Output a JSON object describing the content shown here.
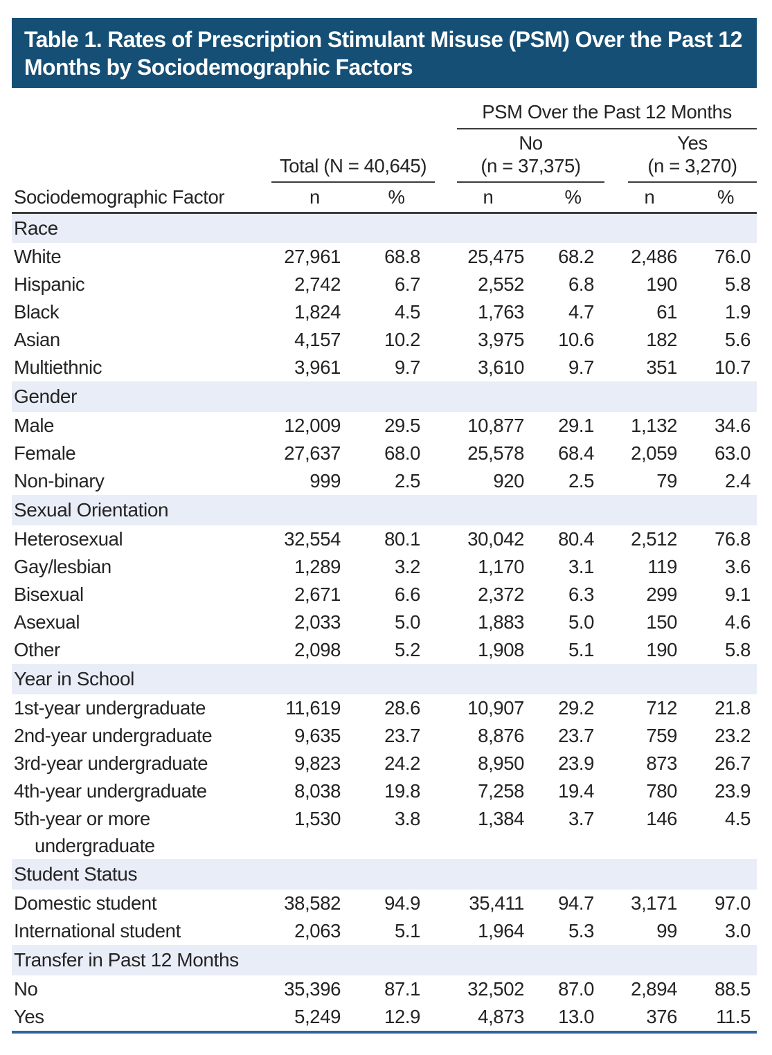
{
  "title": "Table 1. Rates of Prescription Stimulant Misuse (PSM) Over the Past 12 Months by Sociodemographic Factors",
  "colors": {
    "title_bg": "#164F75",
    "band_bg": "#E9EDF8",
    "rule": "#3B3B3B",
    "bottom_line": "#2A66A4",
    "text": "#242424"
  },
  "header": {
    "spanner_label": "PSM Over the Past 12 Months",
    "factor_label": "Sociodemographic Factor",
    "groups": [
      {
        "line1": "Total (N = 40,645)",
        "line2": ""
      },
      {
        "line1": "No",
        "line2": "(n = 37,375)"
      },
      {
        "line1": "Yes",
        "line2": "(n = 3,270)"
      }
    ],
    "stat_labels": [
      "n",
      "%",
      "n",
      "%",
      "n",
      "%"
    ]
  },
  "sections": [
    {
      "label": "Race",
      "rows": [
        {
          "label": "White",
          "values": [
            "27,961",
            "68.8",
            "25,475",
            "68.2",
            "2,486",
            "76.0"
          ]
        },
        {
          "label": "Hispanic",
          "values": [
            "2,742",
            "6.7",
            "2,552",
            "6.8",
            "190",
            "5.8"
          ]
        },
        {
          "label": "Black",
          "values": [
            "1,824",
            "4.5",
            "1,763",
            "4.7",
            "61",
            "1.9"
          ]
        },
        {
          "label": "Asian",
          "values": [
            "4,157",
            "10.2",
            "3,975",
            "10.6",
            "182",
            "5.6"
          ]
        },
        {
          "label": "Multiethnic",
          "values": [
            "3,961",
            "9.7",
            "3,610",
            "9.7",
            "351",
            "10.7"
          ]
        }
      ]
    },
    {
      "label": "Gender",
      "rows": [
        {
          "label": "Male",
          "values": [
            "12,009",
            "29.5",
            "10,877",
            "29.1",
            "1,132",
            "34.6"
          ]
        },
        {
          "label": "Female",
          "values": [
            "27,637",
            "68.0",
            "25,578",
            "68.4",
            "2,059",
            "63.0"
          ]
        },
        {
          "label": "Non-binary",
          "values": [
            "999",
            "2.5",
            "920",
            "2.5",
            "79",
            "2.4"
          ]
        }
      ]
    },
    {
      "label": "Sexual Orientation",
      "rows": [
        {
          "label": "Heterosexual",
          "values": [
            "32,554",
            "80.1",
            "30,042",
            "80.4",
            "2,512",
            "76.8"
          ]
        },
        {
          "label": "Gay/lesbian",
          "values": [
            "1,289",
            "3.2",
            "1,170",
            "3.1",
            "119",
            "3.6"
          ]
        },
        {
          "label": "Bisexual",
          "values": [
            "2,671",
            "6.6",
            "2,372",
            "6.3",
            "299",
            "9.1"
          ]
        },
        {
          "label": "Asexual",
          "values": [
            "2,033",
            "5.0",
            "1,883",
            "5.0",
            "150",
            "4.6"
          ]
        },
        {
          "label": "Other",
          "values": [
            "2,098",
            "5.2",
            "1,908",
            "5.1",
            "190",
            "5.8"
          ]
        }
      ]
    },
    {
      "label": "Year in School",
      "rows": [
        {
          "label": "1st-year undergraduate",
          "values": [
            "11,619",
            "28.6",
            "10,907",
            "29.2",
            "712",
            "21.8"
          ]
        },
        {
          "label": "2nd-year undergraduate",
          "values": [
            "9,635",
            "23.7",
            "8,876",
            "23.7",
            "759",
            "23.2"
          ]
        },
        {
          "label": "3rd-year undergraduate",
          "values": [
            "9,823",
            "24.2",
            "8,950",
            "23.9",
            "873",
            "26.7"
          ]
        },
        {
          "label": "4th-year undergraduate",
          "values": [
            "8,038",
            "19.8",
            "7,258",
            "19.4",
            "780",
            "23.9"
          ]
        },
        {
          "label": "5th-year or more",
          "label_line2": "undergraduate",
          "values": [
            "1,530",
            "3.8",
            "1,384",
            "3.7",
            "146",
            "4.5"
          ]
        }
      ]
    },
    {
      "label": "Student Status",
      "rows": [
        {
          "label": "Domestic student",
          "values": [
            "38,582",
            "94.9",
            "35,411",
            "94.7",
            "3,171",
            "97.0"
          ]
        },
        {
          "label": "International student",
          "values": [
            "2,063",
            "5.1",
            "1,964",
            "5.3",
            "99",
            "3.0"
          ]
        }
      ]
    },
    {
      "label": "Transfer in Past 12 Months",
      "rows": [
        {
          "label": "No",
          "values": [
            "35,396",
            "87.1",
            "32,502",
            "87.0",
            "2,894",
            "88.5"
          ]
        },
        {
          "label": "Yes",
          "values": [
            "5,249",
            "12.9",
            "4,873",
            "13.0",
            "376",
            "11.5"
          ]
        }
      ]
    }
  ]
}
